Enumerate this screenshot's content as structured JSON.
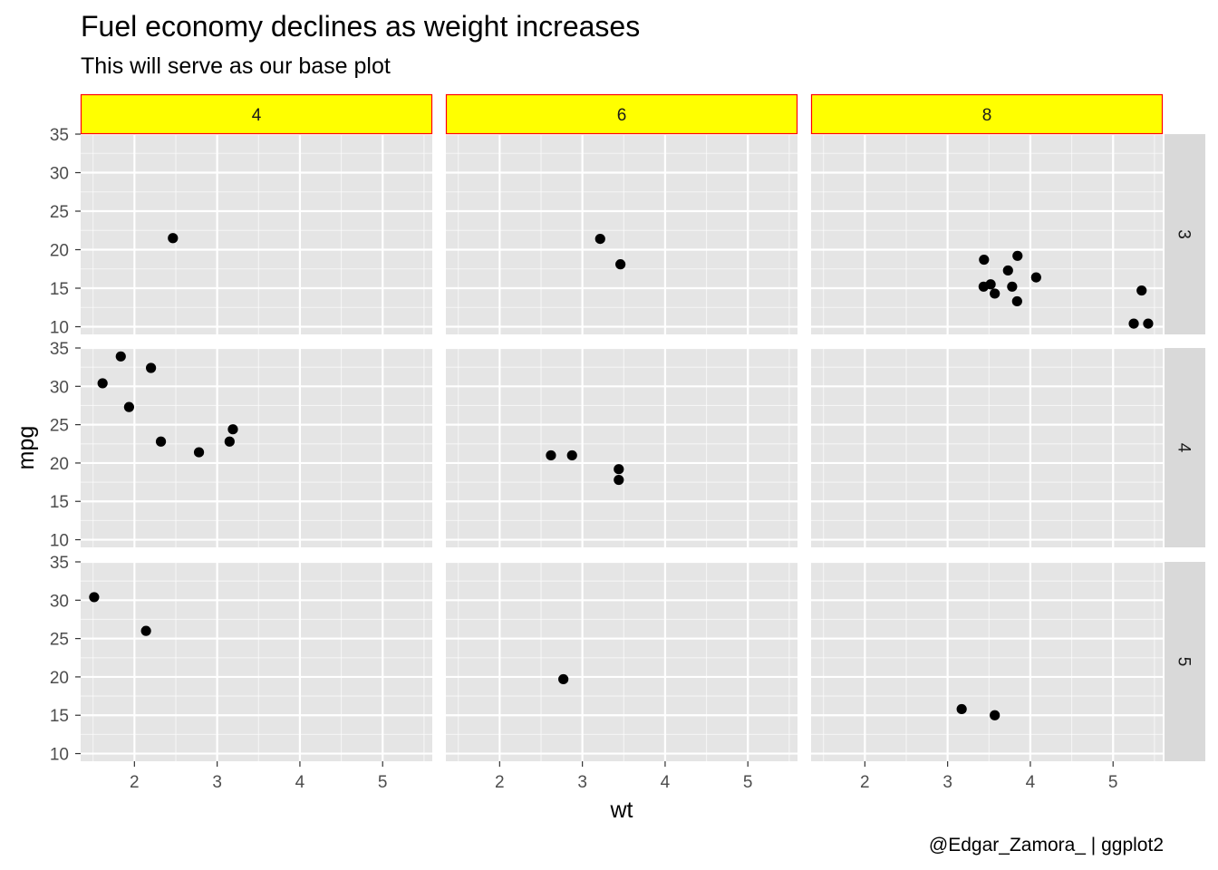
{
  "title": "Fuel economy declines as weight increases",
  "subtitle": "This will serve as our base plot",
  "caption": "@Edgar_Zamora_ | ggplot2",
  "chart_data": {
    "type": "scatter",
    "xlabel": "wt",
    "ylabel": "mpg",
    "xlim": [
      1.35,
      5.6
    ],
    "ylim": [
      9.0,
      35.0
    ],
    "x_ticks": [
      2,
      3,
      4,
      5
    ],
    "y_ticks": [
      10,
      15,
      20,
      25,
      30,
      35
    ],
    "facet_cols": [
      "4",
      "6",
      "8"
    ],
    "facet_rows": [
      "3",
      "4",
      "5"
    ],
    "colors": {
      "panel_bg": "#e5e5e5",
      "grid": "#ffffff",
      "col_strip_fill": "#ffff00",
      "col_strip_border": "#ff0000",
      "row_strip_fill": "#d9d9d9",
      "point": "#000000"
    },
    "panels": [
      {
        "row": "3",
        "col": "4",
        "points": [
          [
            2.465,
            21.5
          ]
        ]
      },
      {
        "row": "3",
        "col": "6",
        "points": [
          [
            3.215,
            21.4
          ],
          [
            3.46,
            18.1
          ]
        ]
      },
      {
        "row": "3",
        "col": "8",
        "points": [
          [
            3.44,
            18.7
          ],
          [
            3.57,
            14.3
          ],
          [
            4.07,
            16.4
          ],
          [
            3.73,
            17.3
          ],
          [
            3.78,
            15.2
          ],
          [
            5.25,
            10.4
          ],
          [
            5.424,
            10.4
          ],
          [
            5.345,
            14.7
          ],
          [
            3.52,
            15.5
          ],
          [
            3.435,
            15.2
          ],
          [
            3.84,
            13.3
          ],
          [
            3.845,
            19.2
          ]
        ]
      },
      {
        "row": "4",
        "col": "4",
        "points": [
          [
            2.32,
            22.8
          ],
          [
            3.19,
            24.4
          ],
          [
            3.15,
            22.8
          ],
          [
            2.2,
            32.4
          ],
          [
            1.615,
            30.4
          ],
          [
            1.835,
            33.9
          ],
          [
            1.935,
            27.3
          ],
          [
            2.78,
            21.4
          ]
        ]
      },
      {
        "row": "4",
        "col": "6",
        "points": [
          [
            2.62,
            21.0
          ],
          [
            2.875,
            21.0
          ],
          [
            3.44,
            19.2
          ],
          [
            3.44,
            17.8
          ]
        ]
      },
      {
        "row": "4",
        "col": "8",
        "points": []
      },
      {
        "row": "5",
        "col": "4",
        "points": [
          [
            2.14,
            26.0
          ],
          [
            1.513,
            30.4
          ]
        ]
      },
      {
        "row": "5",
        "col": "6",
        "points": [
          [
            2.77,
            19.7
          ]
        ]
      },
      {
        "row": "5",
        "col": "8",
        "points": [
          [
            3.17,
            15.8
          ],
          [
            3.57,
            15.0
          ]
        ]
      }
    ]
  }
}
